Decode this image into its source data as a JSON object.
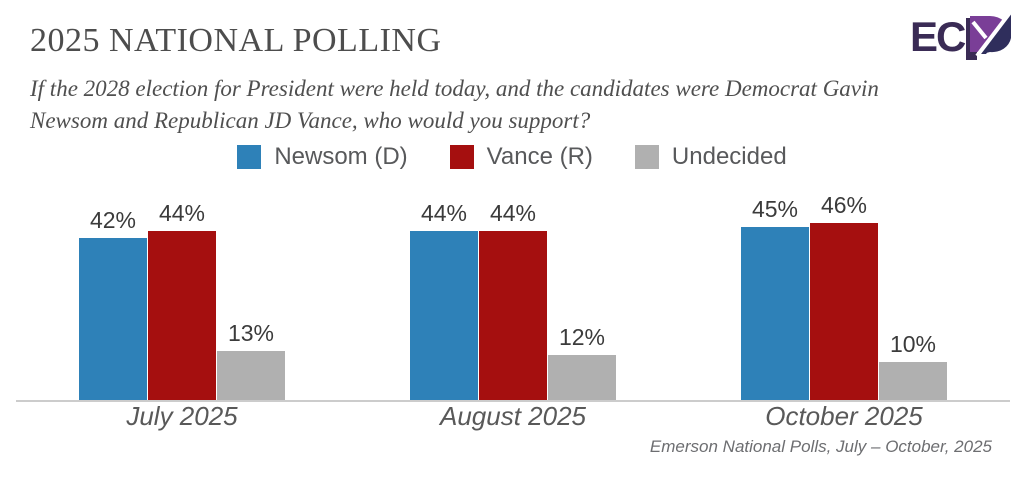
{
  "header": {
    "title": "2025 NATIONAL POLLING",
    "subtitle": "If the 2028 election for President were held today, and the candidates were Democrat Gavin Newsom and Republican JD Vance, who would you support?",
    "logo_text": "ECP"
  },
  "colors": {
    "newsom_blue": "#2e81b8",
    "vance_red": "#a50f0f",
    "undecided_gray": "#b0b0b0",
    "axis_line": "#cccccc",
    "logo_dark_purple": "#3a2b55",
    "logo_violet": "#7a3e97",
    "logo_navy": "#2f2e5c"
  },
  "chart_data": {
    "type": "bar",
    "title": "2025 NATIONAL POLLING",
    "categories": [
      "July 2025",
      "August 2025",
      "October 2025"
    ],
    "series": [
      {
        "name": "Newsom (D)",
        "color": "#2e81b8",
        "values": [
          42,
          44,
          45
        ]
      },
      {
        "name": "Vance (R)",
        "color": "#a50f0f",
        "values": [
          44,
          44,
          46
        ]
      },
      {
        "name": "Undecided",
        "color": "#b0b0b0",
        "values": [
          13,
          12,
          10
        ]
      }
    ],
    "value_suffix": "%",
    "ylim": [
      0,
      50
    ],
    "grid": false,
    "legend_position": "top",
    "data_labels": true,
    "xlabel": "",
    "ylabel": ""
  },
  "footer": {
    "source": "Emerson National Polls, July – October, 2025"
  }
}
